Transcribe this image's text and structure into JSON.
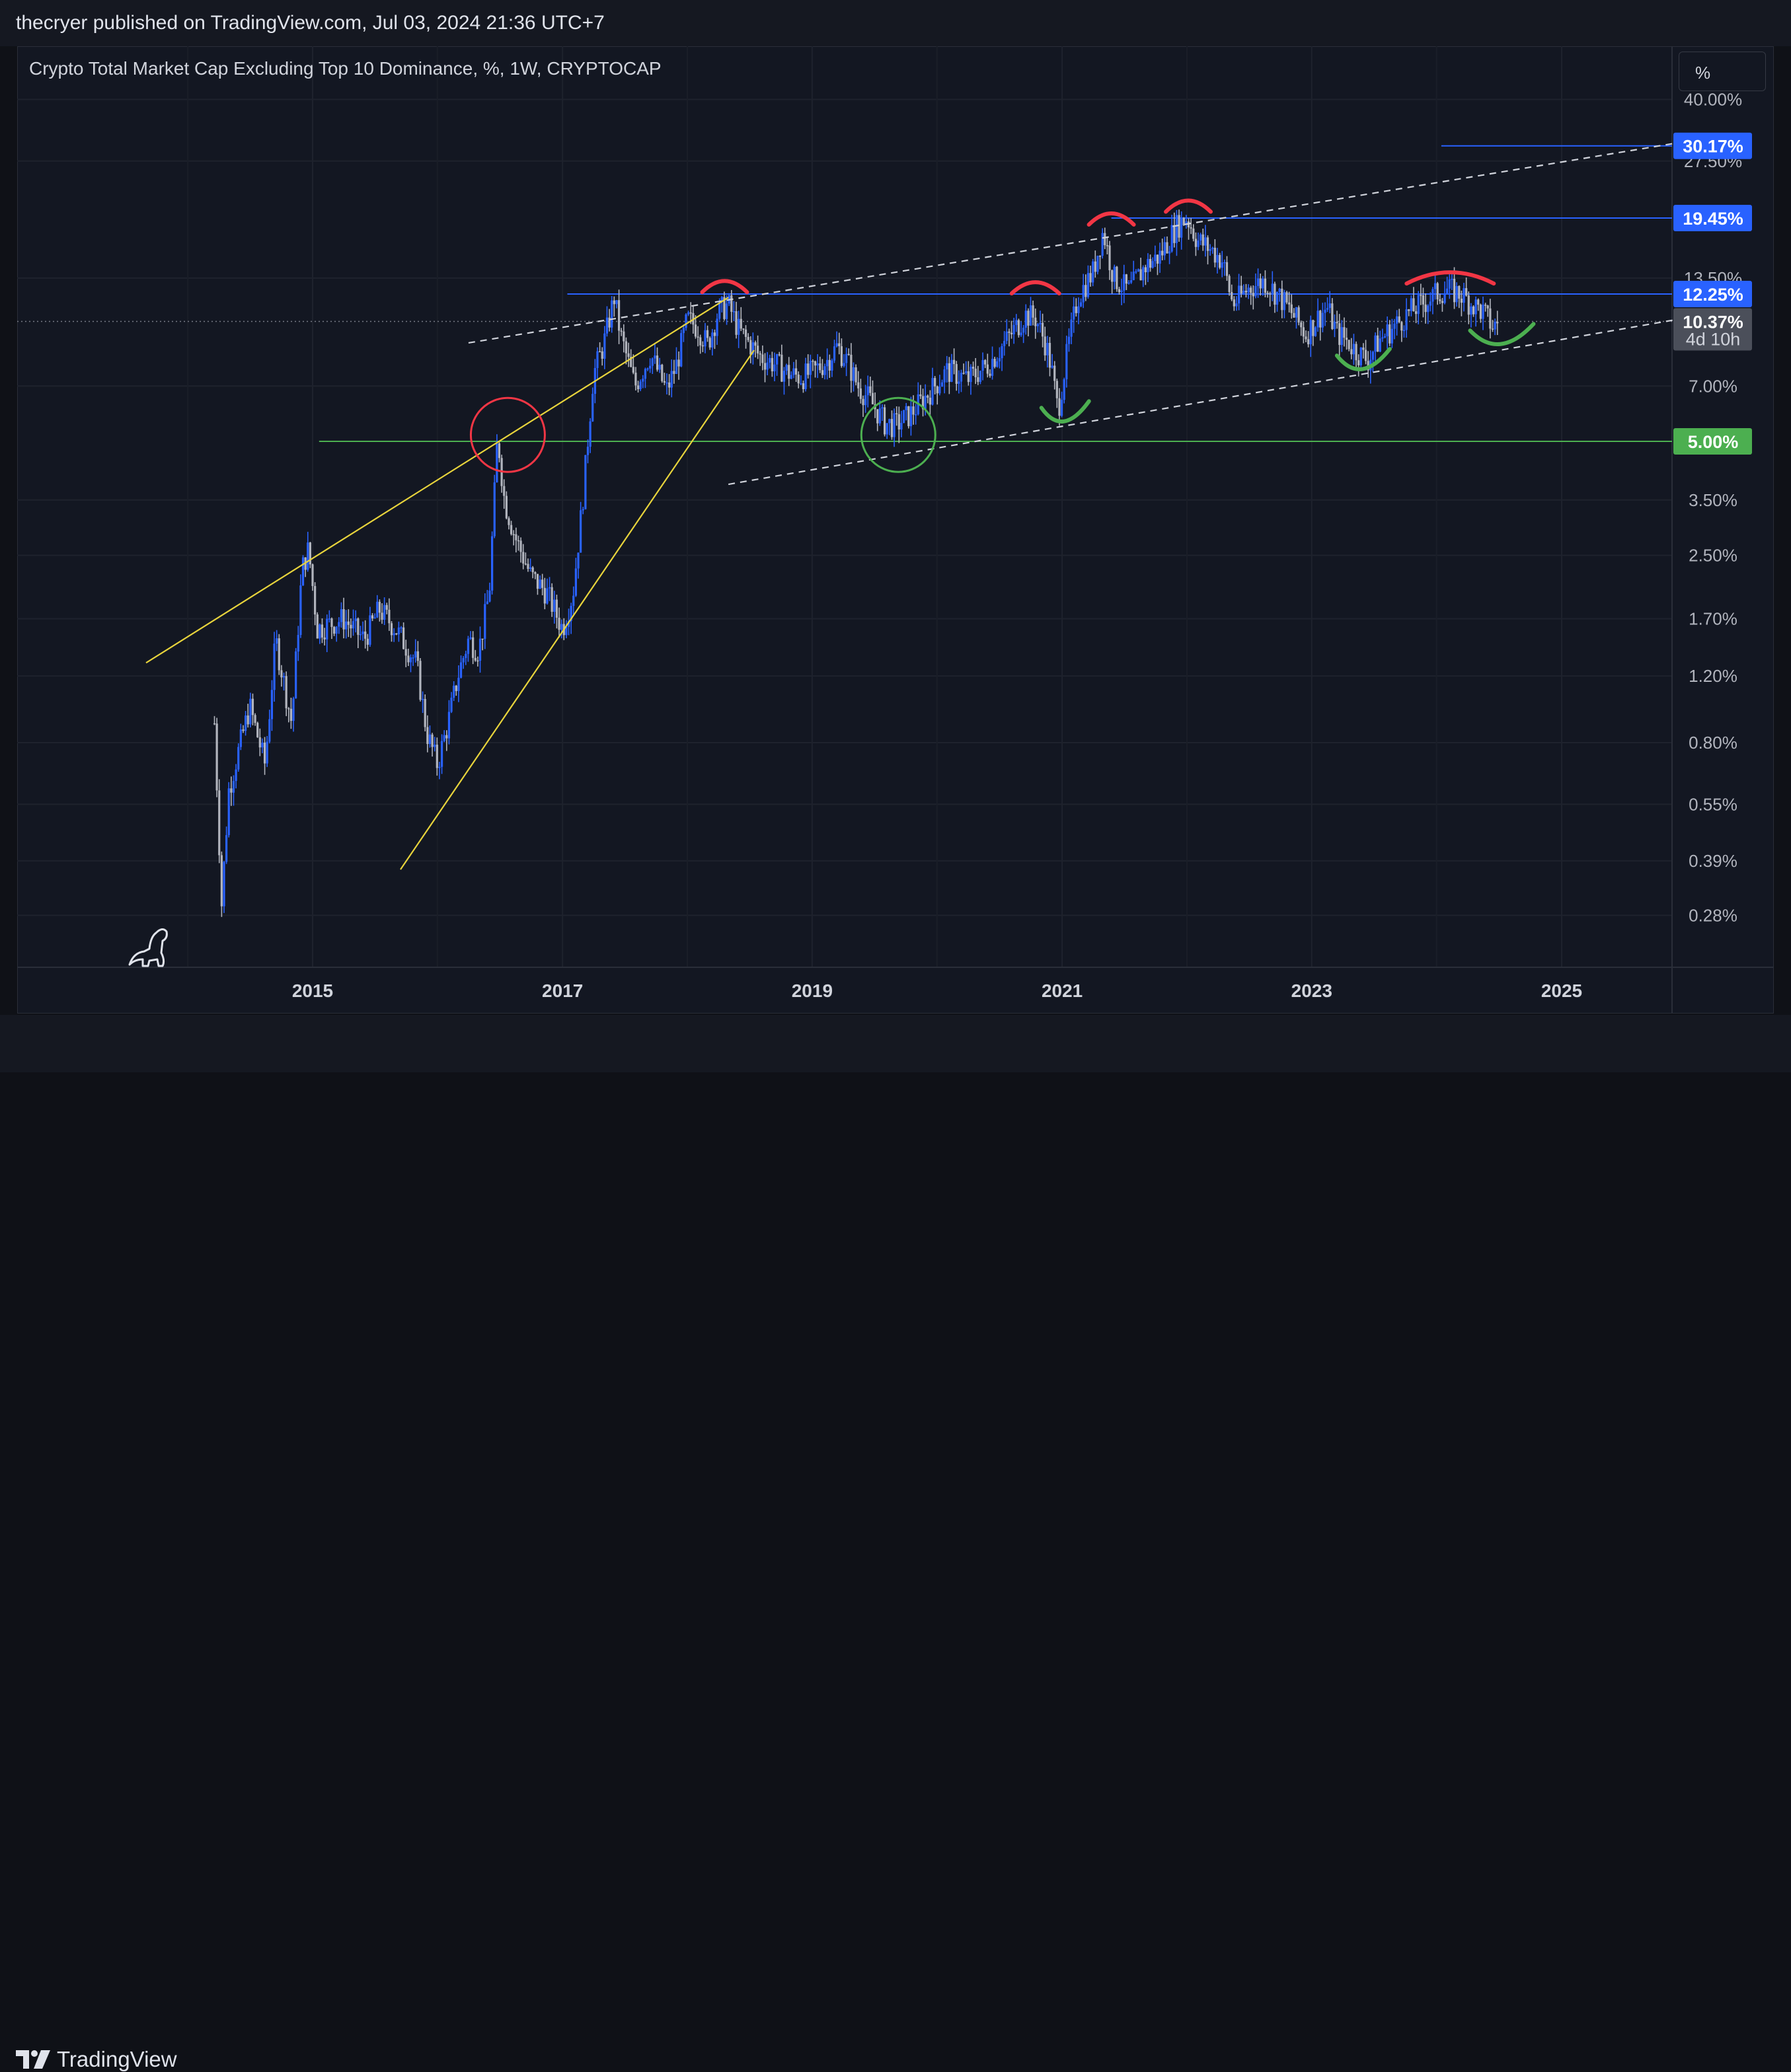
{
  "header": {
    "publisher_line": "thecryer published on TradingView.com, Jul 03, 2024 21:36 UTC+7"
  },
  "footer": {
    "brand": "TradingView"
  },
  "toolbar": {
    "scale_button": "%"
  },
  "colors": {
    "background": "#131722",
    "candle_up": "#2962ff",
    "candle_down": "#b2b5be",
    "blue_line": "#2962ff",
    "green_line": "#4caf50",
    "yellow_line": "#e8d43c",
    "red_marker": "#f23645",
    "green_marker": "#4caf50",
    "dashed_channel": "#d1d4dc"
  },
  "chart_data": {
    "type": "candlestick",
    "title": "Crypto Total Market Cap Excluding Top 10 Dominance, %, 1W, CRYPTOCAP",
    "scale": "log",
    "x_ticks": [
      "2015",
      "2017",
      "2019",
      "2021",
      "2023",
      "2025"
    ],
    "y_ticks": [
      "40.00%",
      "27.50%",
      "13.50%",
      "7.00%",
      "3.50%",
      "2.50%",
      "1.70%",
      "1.20%",
      "0.80%",
      "0.55%",
      "0.39%",
      "0.28%"
    ],
    "last_price": {
      "label": "10.37%",
      "countdown": "4d 10h"
    },
    "horizontal_levels": [
      {
        "label": "30.17%",
        "value": 30.17,
        "color": "#2962ff"
      },
      {
        "label": "19.45%",
        "value": 19.45,
        "color": "#2962ff"
      },
      {
        "label": "12.25%",
        "value": 12.25,
        "color": "#2962ff"
      },
      {
        "label": "5.00%",
        "value": 5.0,
        "color": "#4caf50"
      }
    ],
    "path_points": [
      [
        "2014-03-20",
        0.9
      ],
      [
        "2014-04-10",
        0.3
      ],
      [
        "2014-05-01",
        0.6
      ],
      [
        "2014-07-01",
        1.0
      ],
      [
        "2014-08-15",
        0.7
      ],
      [
        "2014-09-15",
        1.5
      ],
      [
        "2014-11-01",
        0.9
      ],
      [
        "2014-12-01",
        2.3
      ],
      [
        "2014-12-20",
        2.6
      ],
      [
        "2015-01-15",
        1.6
      ],
      [
        "2015-04-01",
        1.7
      ],
      [
        "2015-06-01",
        1.5
      ],
      [
        "2015-07-15",
        1.8
      ],
      [
        "2015-09-01",
        1.6
      ],
      [
        "2015-11-01",
        1.3
      ],
      [
        "2015-12-01",
        0.85
      ],
      [
        "2016-01-01",
        0.7
      ],
      [
        "2016-02-01",
        0.9
      ],
      [
        "2016-03-01",
        1.2
      ],
      [
        "2016-04-01",
        1.5
      ],
      [
        "2016-05-01",
        1.4
      ],
      [
        "2016-06-01",
        2.0
      ],
      [
        "2016-06-25",
        5.2
      ],
      [
        "2016-07-15",
        3.5
      ],
      [
        "2016-08-15",
        2.8
      ],
      [
        "2016-10-01",
        2.2
      ],
      [
        "2016-11-15",
        2.0
      ],
      [
        "2017-01-01",
        1.6
      ],
      [
        "2017-02-01",
        2.0
      ],
      [
        "2017-03-01",
        3.5
      ],
      [
        "2017-04-01",
        7.5
      ],
      [
        "2017-05-01",
        9.0
      ],
      [
        "2017-06-01",
        12.0
      ],
      [
        "2017-06-20",
        9.5
      ],
      [
        "2017-08-01",
        7.0
      ],
      [
        "2017-09-15",
        8.5
      ],
      [
        "2017-11-01",
        6.8
      ],
      [
        "2017-12-01",
        8.0
      ],
      [
        "2018-01-01",
        10.5
      ],
      [
        "2018-02-01",
        10.0
      ],
      [
        "2018-03-01",
        9.0
      ],
      [
        "2018-04-01",
        11.0
      ],
      [
        "2018-05-01",
        11.5
      ],
      [
        "2018-06-01",
        9.8
      ],
      [
        "2018-08-01",
        8.4
      ],
      [
        "2018-09-15",
        8.0
      ],
      [
        "2018-11-01",
        7.5
      ],
      [
        "2018-12-01",
        7.4
      ],
      [
        "2019-01-01",
        7.6
      ],
      [
        "2019-02-15",
        8.2
      ],
      [
        "2019-03-15",
        8.9
      ],
      [
        "2019-04-15",
        8.1
      ],
      [
        "2019-05-15",
        7.0
      ],
      [
        "2019-06-15",
        6.5
      ],
      [
        "2019-08-01",
        5.6
      ],
      [
        "2019-09-01",
        5.5
      ],
      [
        "2019-10-15",
        5.9
      ],
      [
        "2019-12-01",
        6.6
      ],
      [
        "2020-02-01",
        7.7
      ],
      [
        "2020-04-01",
        7.3
      ],
      [
        "2020-06-01",
        8.0
      ],
      [
        "2020-08-01",
        9.5
      ],
      [
        "2020-09-15",
        10.8
      ],
      [
        "2020-10-15",
        10.6
      ],
      [
        "2020-11-15",
        9.0
      ],
      [
        "2020-12-01",
        7.8
      ],
      [
        "2020-12-20",
        6.0
      ],
      [
        "2021-01-15",
        8.5
      ],
      [
        "2021-02-15",
        12.0
      ],
      [
        "2021-04-01",
        14.0
      ],
      [
        "2021-05-01",
        18.0
      ],
      [
        "2021-06-01",
        13.5
      ],
      [
        "2021-07-15",
        12.5
      ],
      [
        "2021-09-01",
        14.5
      ],
      [
        "2021-10-15",
        15.5
      ],
      [
        "2021-12-01",
        18.5
      ],
      [
        "2022-01-01",
        19.5
      ],
      [
        "2022-02-01",
        17.0
      ],
      [
        "2022-03-15",
        16.0
      ],
      [
        "2022-04-15",
        15.0
      ],
      [
        "2022-05-15",
        11.5
      ],
      [
        "2022-07-01",
        12.7
      ],
      [
        "2022-08-15",
        13.3
      ],
      [
        "2022-10-01",
        12.0
      ],
      [
        "2022-11-01",
        11.0
      ],
      [
        "2022-12-15",
        9.6
      ],
      [
        "2023-01-15",
        10.5
      ],
      [
        "2023-02-15",
        11.3
      ],
      [
        "2023-03-15",
        9.7
      ],
      [
        "2023-04-15",
        9.2
      ],
      [
        "2023-05-15",
        8.6
      ],
      [
        "2023-06-15",
        8.2
      ],
      [
        "2023-07-15",
        9.2
      ],
      [
        "2023-09-01",
        10.1
      ],
      [
        "2023-10-15",
        11.0
      ],
      [
        "2023-12-01",
        11.7
      ],
      [
        "2024-01-01",
        12.3
      ],
      [
        "2024-02-01",
        12.6
      ],
      [
        "2024-03-15",
        12.2
      ],
      [
        "2024-04-15",
        11.5
      ],
      [
        "2024-05-15",
        11.0
      ],
      [
        "2024-06-15",
        10.0
      ],
      [
        "2024-07-03",
        10.37
      ]
    ]
  }
}
